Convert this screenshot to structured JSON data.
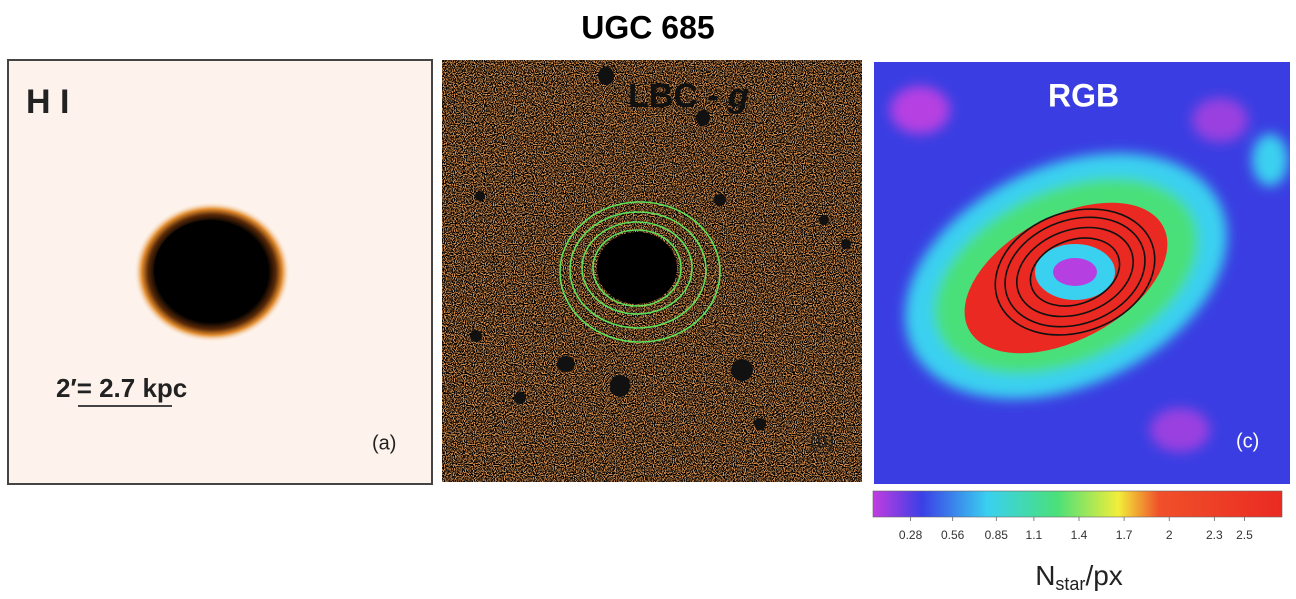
{
  "title": "UGC 685",
  "panels": [
    {
      "label": "H I",
      "scale_bar": "2′= 2.7 kpc",
      "tag": "(a)"
    },
    {
      "label": {
        "text": "LBC - ",
        "italic": "g"
      },
      "tag": "(b)"
    },
    {
      "label": "RGB",
      "tag": "(c)"
    }
  ],
  "colorbar": {
    "clim": [
      0.03,
      2.75
    ],
    "ticks": [
      0.28,
      0.56,
      0.85,
      1.1,
      1.4,
      1.7,
      2,
      2.3,
      2.5
    ],
    "label": {
      "main": "N",
      "sub": "star",
      "rest": "/px"
    }
  }
}
